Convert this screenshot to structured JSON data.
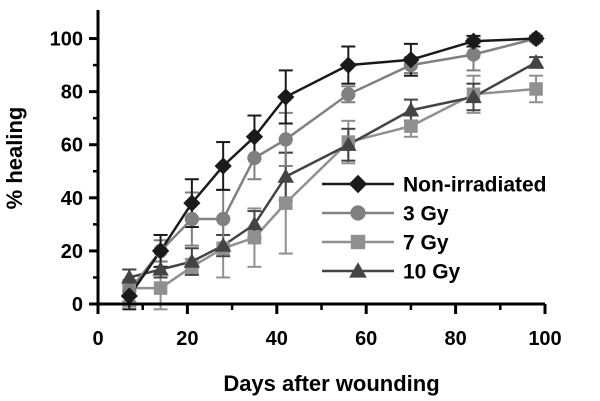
{
  "chart_data": {
    "type": "line",
    "title": "",
    "xlabel": "Days after wounding",
    "ylabel": "% healing",
    "xlim": [
      0,
      100
    ],
    "ylim": [
      0,
      110
    ],
    "x_ticks": [
      0,
      20,
      40,
      60,
      80,
      100
    ],
    "y_ticks": [
      0,
      20,
      40,
      60,
      80,
      100
    ],
    "x_tick_labels": [
      "0",
      "20",
      "40",
      "60",
      "80",
      "100"
    ],
    "y_tick_labels": [
      "0",
      "20",
      "40",
      "60",
      "80",
      "100"
    ],
    "grid": false,
    "legend_position": "center-right",
    "series": [
      {
        "name": "Non-irradiated",
        "marker": "diamond",
        "color": "#1a1a1a",
        "points": [
          {
            "x": 7,
            "y": 3,
            "err": 5
          },
          {
            "x": 14,
            "y": 20,
            "err": 6
          },
          {
            "x": 21,
            "y": 38,
            "err": 9
          },
          {
            "x": 28,
            "y": 52,
            "err": 9
          },
          {
            "x": 35,
            "y": 63,
            "err": 8
          },
          {
            "x": 42,
            "y": 78,
            "err": 10
          },
          {
            "x": 56,
            "y": 90,
            "err": 7
          },
          {
            "x": 70,
            "y": 92,
            "err": 6
          },
          {
            "x": 84,
            "y": 99,
            "err": 2
          },
          {
            "x": 98,
            "y": 100,
            "err": 1
          }
        ]
      },
      {
        "name": "3 Gy",
        "marker": "circle",
        "color": "#808080",
        "points": [
          {
            "x": 7,
            "y": 5,
            "err": 4
          },
          {
            "x": 14,
            "y": 20,
            "err": 4
          },
          {
            "x": 21,
            "y": 32,
            "err": 10
          },
          {
            "x": 28,
            "y": 32,
            "err": 11
          },
          {
            "x": 35,
            "y": 55,
            "err": 8
          },
          {
            "x": 42,
            "y": 62,
            "err": 10
          },
          {
            "x": 56,
            "y": 79,
            "err": 3
          },
          {
            "x": 70,
            "y": 90,
            "err": 3
          },
          {
            "x": 84,
            "y": 94,
            "err": 6
          },
          {
            "x": 98,
            "y": 100,
            "err": 1
          }
        ]
      },
      {
        "name": "7 Gy",
        "marker": "square",
        "color": "#909090",
        "points": [
          {
            "x": 7,
            "y": 6,
            "err": 7
          },
          {
            "x": 14,
            "y": 6,
            "err": 8
          },
          {
            "x": 21,
            "y": 14,
            "err": 3
          },
          {
            "x": 28,
            "y": 21,
            "err": 11
          },
          {
            "x": 35,
            "y": 25,
            "err": 11
          },
          {
            "x": 42,
            "y": 38,
            "err": 19
          },
          {
            "x": 56,
            "y": 61,
            "err": 8
          },
          {
            "x": 70,
            "y": 67,
            "err": 4
          },
          {
            "x": 84,
            "y": 79,
            "err": 7
          },
          {
            "x": 98,
            "y": 81,
            "err": 5
          }
        ]
      },
      {
        "name": "10 Gy",
        "marker": "triangle",
        "color": "#444444",
        "points": [
          {
            "x": 7,
            "y": 10,
            "err": 3
          },
          {
            "x": 14,
            "y": 13,
            "err": 3
          },
          {
            "x": 21,
            "y": 16,
            "err": 5
          },
          {
            "x": 28,
            "y": 22,
            "err": 4
          },
          {
            "x": 35,
            "y": 30,
            "err": 5
          },
          {
            "x": 42,
            "y": 48,
            "err": 9
          },
          {
            "x": 56,
            "y": 60,
            "err": 6
          },
          {
            "x": 70,
            "y": 73,
            "err": 4
          },
          {
            "x": 84,
            "y": 78,
            "err": 5
          },
          {
            "x": 98,
            "y": 91,
            "err": 2
          }
        ]
      }
    ]
  }
}
